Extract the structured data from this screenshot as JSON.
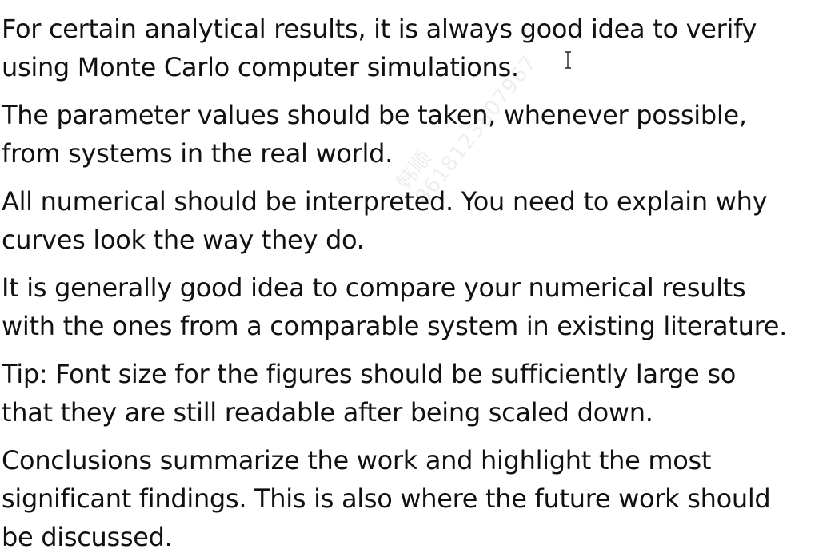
{
  "paragraphs": [
    {
      "lines": [
        "For certain analytical results, it is always good idea to verify",
        "using Monte Carlo computer simulations."
      ]
    },
    {
      "lines": [
        "The parameter values should be taken, whenever possible,",
        "from systems in the real world."
      ]
    },
    {
      "lines": [
        "All numerical should be interpreted.  You need to explain why",
        "curves look the way they do."
      ]
    },
    {
      "lines": [
        "It is generally good idea to compare your numerical results",
        "with the ones from a comparable system in existing literature."
      ]
    },
    {
      "lines": [
        "Tip: Font size for the figures should be sufficiently large so",
        "that they are still readable after being scaled down."
      ]
    },
    {
      "lines": [
        "Conclusions summarize the work and highlight the most",
        "significant findings.  This is also where the future work should",
        "be discussed."
      ]
    }
  ],
  "watermark": {
    "line1": "韩顺",
    "line2": "8618123807967"
  },
  "cursor_icon": "text-cursor-icon"
}
